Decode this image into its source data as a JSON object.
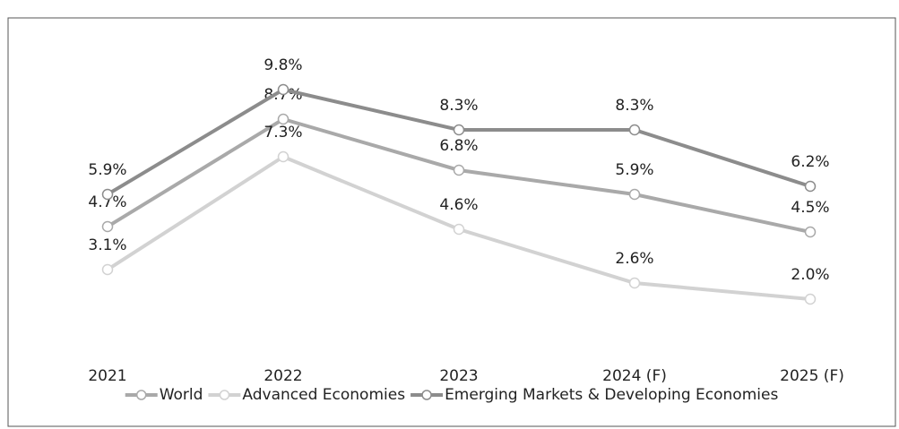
{
  "chart_data": {
    "type": "line",
    "categories": [
      "2021",
      "2022",
      "2023",
      "2024 (F)",
      "2025 (F)"
    ],
    "series": [
      {
        "name": "World",
        "color": "#a9a9a9",
        "values": [
          4.7,
          8.7,
          6.8,
          5.9,
          4.5
        ],
        "value_labels": [
          "4.7%",
          "8.7%",
          "6.8%",
          "5.9%",
          "4.5%"
        ]
      },
      {
        "name": "Advanced Economies",
        "color": "#d2d2d2",
        "values": [
          3.1,
          7.3,
          4.6,
          2.6,
          2.0
        ],
        "value_labels": [
          "3.1%",
          "7.3%",
          "4.6%",
          "2.6%",
          "2.0%"
        ]
      },
      {
        "name": "Emerging Markets & Developing Economies",
        "color": "#8c8c8c",
        "values": [
          5.9,
          9.8,
          8.3,
          8.3,
          6.2
        ],
        "value_labels": [
          "5.9%",
          "9.8%",
          "8.3%",
          "8.3%",
          "6.2%"
        ]
      }
    ],
    "ylim": [
      0,
      10
    ],
    "legend": "bottom"
  }
}
